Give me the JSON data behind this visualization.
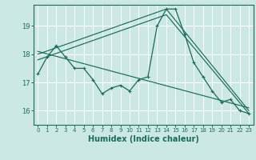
{
  "xlabel": "Humidex (Indice chaleur)",
  "bg_color": "#cce8e4",
  "line_color": "#1a6b5a",
  "grid_color": "#ffffff",
  "xlim": [
    -0.5,
    23.5
  ],
  "ylim": [
    15.5,
    19.75
  ],
  "yticks": [
    16,
    17,
    18,
    19
  ],
  "xticks": [
    0,
    1,
    2,
    3,
    4,
    5,
    6,
    7,
    8,
    9,
    10,
    11,
    12,
    13,
    14,
    15,
    16,
    17,
    18,
    19,
    20,
    21,
    22,
    23
  ],
  "series1_x": [
    0,
    1,
    2,
    3,
    4,
    5,
    6,
    7,
    8,
    9,
    10,
    11,
    12,
    13,
    14,
    15,
    16,
    17,
    18,
    19,
    20,
    21,
    22,
    23
  ],
  "series1_y": [
    17.3,
    17.9,
    18.3,
    17.9,
    17.5,
    17.5,
    17.1,
    16.6,
    16.8,
    16.9,
    16.7,
    17.1,
    17.2,
    19.0,
    19.6,
    19.6,
    18.7,
    17.7,
    17.2,
    16.7,
    16.3,
    16.4,
    16.0,
    15.9
  ],
  "series2_x": [
    0,
    14,
    23
  ],
  "series2_y": [
    18.0,
    19.6,
    16.0
  ],
  "series3_x": [
    0,
    14,
    23
  ],
  "series3_y": [
    17.8,
    19.4,
    15.9
  ],
  "series4_x": [
    0,
    23
  ],
  "series4_y": [
    18.1,
    16.1
  ]
}
